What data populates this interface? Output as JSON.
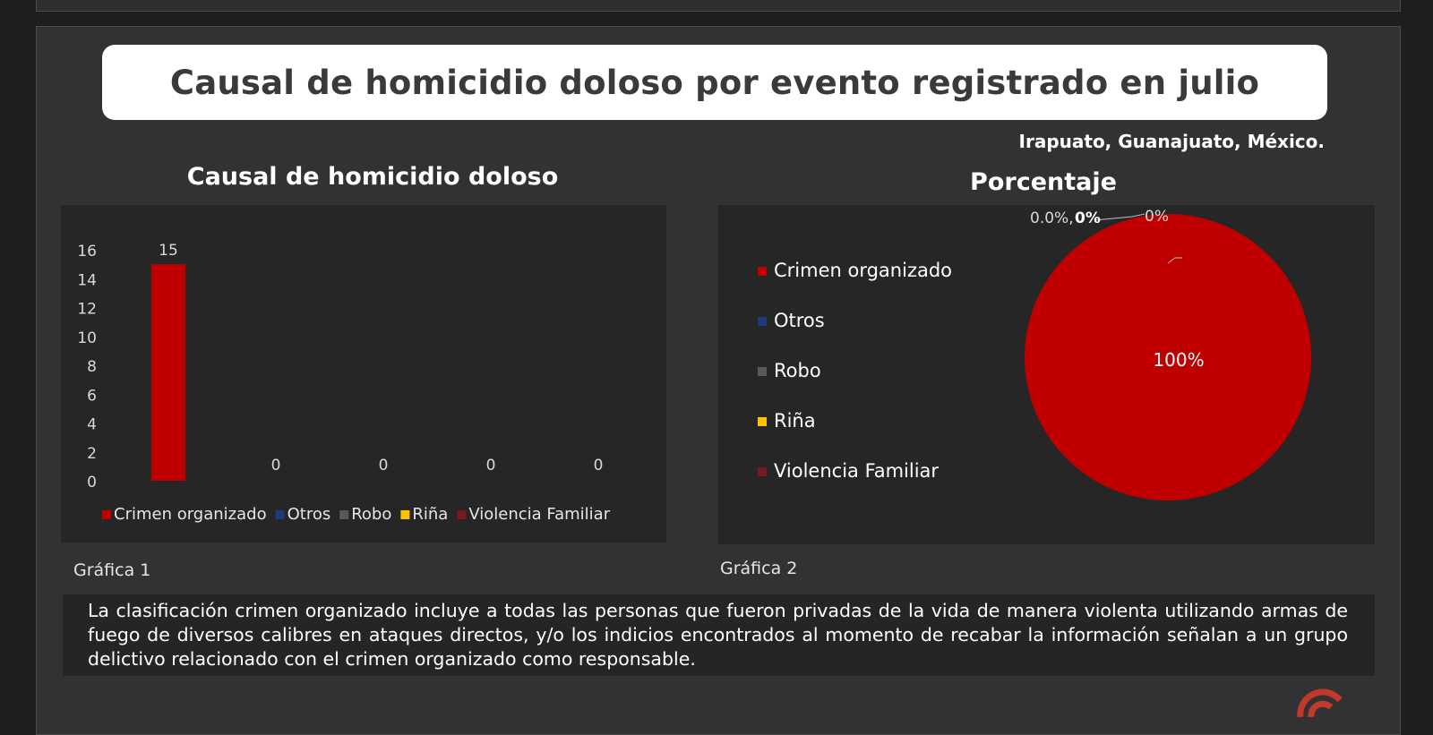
{
  "header": {
    "title": "Causal de homicidio doloso por evento registrado en julio",
    "location": "Irapuato, Guanajuato, México."
  },
  "captions": {
    "chart1": "Gráfica 1",
    "chart2": "Gráfica 2"
  },
  "note": "La clasificación crimen organizado incluye a todas las personas que fueron privadas de la vida de manera violenta utilizando armas de fuego de diversos calibres en ataques directos, y/o los indicios encontrados al momento de recabar la información señalan a un grupo delictivo relacionado con el crimen organizado como responsable.",
  "colors": {
    "crimen": "#c00000",
    "otros": "#1f3a7a",
    "robo": "#595959",
    "rina": "#ffc000",
    "violencia": "#7a1a1a",
    "background": "#323234"
  },
  "icons": [
    "brand-logo-icon"
  ],
  "chart_data": [
    {
      "type": "bar",
      "title": "Causal de homicidio doloso",
      "categories": [
        "Crimen organizado",
        "Otros",
        "Robo",
        "Riña",
        "Violencia Familiar"
      ],
      "values": [
        15,
        0,
        0,
        0,
        0
      ],
      "data_labels": [
        "15",
        "0",
        "0",
        "0",
        "0"
      ],
      "ylim": [
        0,
        16
      ],
      "yticks": [
        "0",
        "2",
        "4",
        "6",
        "8",
        "10",
        "12",
        "14",
        "16"
      ],
      "legend": [
        "Crimen organizado",
        "Otros",
        "Robo",
        "Riña",
        "Violencia Familiar"
      ],
      "legend_position": "bottom",
      "grid": false
    },
    {
      "type": "pie",
      "title": "Porcentaje",
      "categories": [
        "Crimen organizado",
        "Otros",
        "Robo",
        "Riña",
        "Violencia Familiar"
      ],
      "values": [
        100,
        0,
        0,
        0,
        0
      ],
      "data_labels": [
        "100%",
        "0%",
        "0%",
        "0.0%,",
        "0%"
      ],
      "legend": [
        "Crimen organizado",
        "Otros",
        "Robo",
        "Riña",
        "Violencia Familiar"
      ],
      "legend_position": "left"
    }
  ]
}
